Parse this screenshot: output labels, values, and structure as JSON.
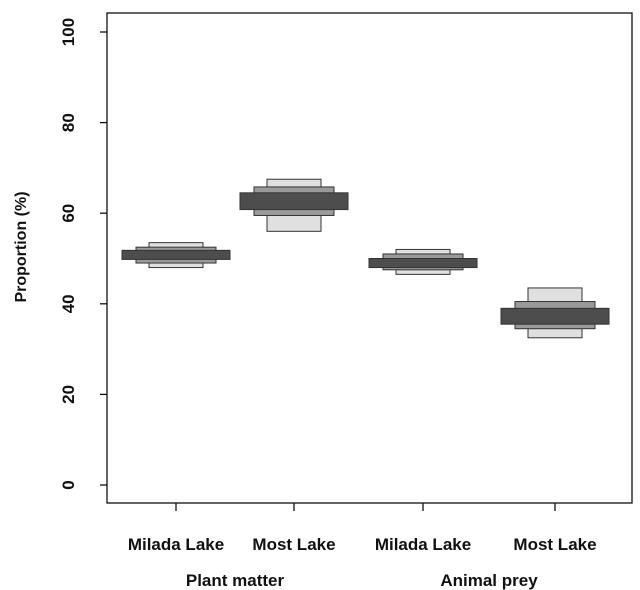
{
  "chart_data": {
    "type": "box",
    "ylabel": "Proportion (%)",
    "ylim": [
      0,
      100
    ],
    "yticks": [
      0,
      20,
      40,
      60,
      80,
      100
    ],
    "groups": [
      {
        "label": "Plant matter",
        "categories": [
          "Milada Lake",
          "Most Lake"
        ]
      },
      {
        "label": "Animal prey",
        "categories": [
          "Milada Lake",
          "Most Lake"
        ]
      }
    ],
    "series": [
      {
        "category": "Milada Lake",
        "group": "Plant matter",
        "bands": [
          {
            "level": "light",
            "low": 48.0,
            "high": 53.5
          },
          {
            "level": "mid",
            "low": 49.0,
            "high": 52.5
          },
          {
            "level": "dark",
            "low": 49.8,
            "high": 51.8
          }
        ]
      },
      {
        "category": "Most Lake",
        "group": "Plant matter",
        "bands": [
          {
            "level": "light",
            "low": 56.0,
            "high": 67.5
          },
          {
            "level": "mid",
            "low": 59.5,
            "high": 65.8
          },
          {
            "level": "dark",
            "low": 60.8,
            "high": 64.5
          }
        ]
      },
      {
        "category": "Milada Lake",
        "group": "Animal prey",
        "bands": [
          {
            "level": "light",
            "low": 46.5,
            "high": 52.0
          },
          {
            "level": "mid",
            "low": 47.5,
            "high": 51.0
          },
          {
            "level": "dark",
            "low": 48.0,
            "high": 50.0
          }
        ]
      },
      {
        "category": "Most Lake",
        "group": "Animal prey",
        "bands": [
          {
            "level": "light",
            "low": 32.5,
            "high": 43.5
          },
          {
            "level": "mid",
            "low": 34.5,
            "high": 40.5
          },
          {
            "level": "dark",
            "low": 35.5,
            "high": 39.0
          }
        ]
      }
    ],
    "colors": {
      "light": "#e0e0e0",
      "mid": "#9a9a9a",
      "dark": "#4d4d4d",
      "stroke": "#333333"
    }
  }
}
